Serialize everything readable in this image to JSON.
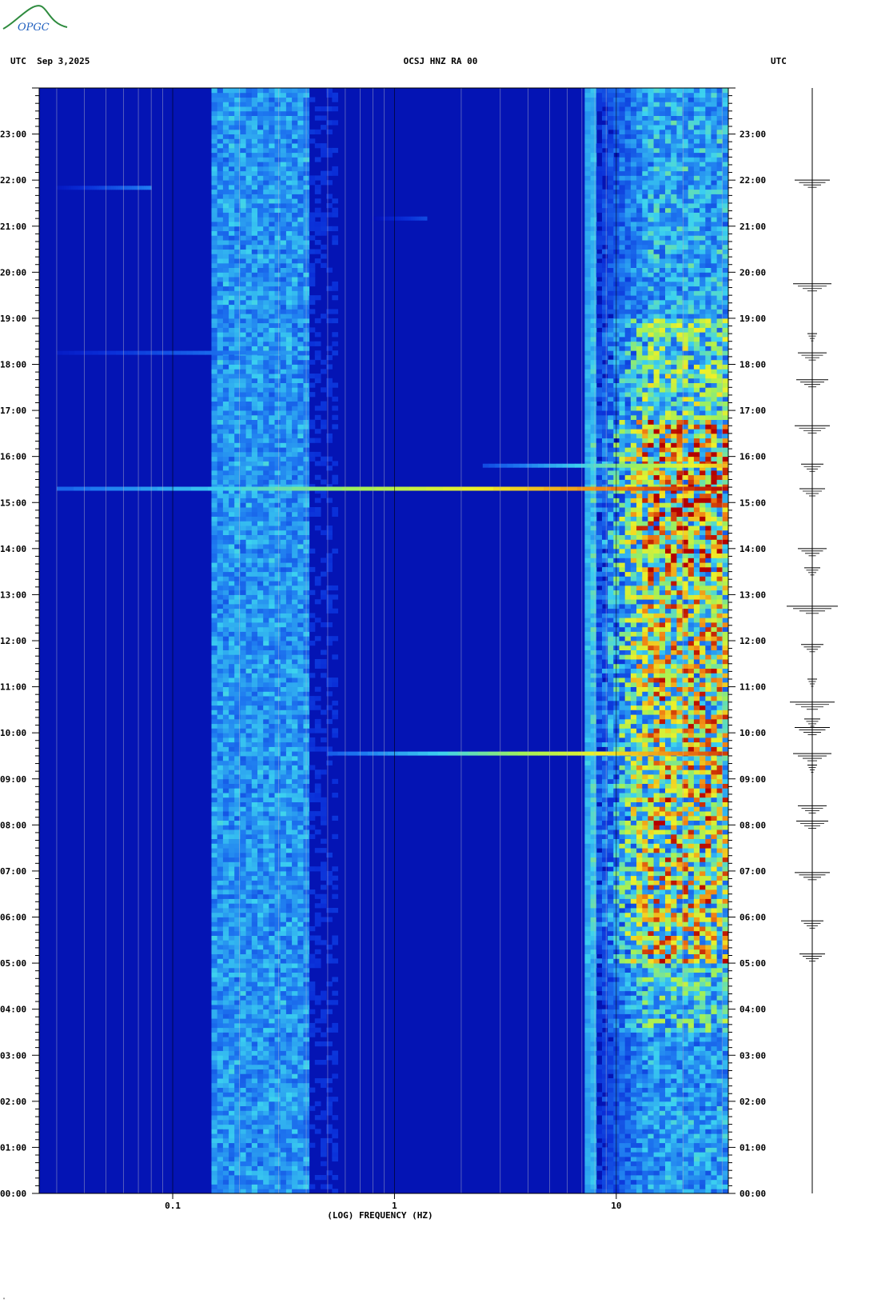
{
  "logo": {
    "text": "OPGC"
  },
  "header": {
    "left": "UTC  Sep 3,2025",
    "center": "OCSJ HNZ RA 00",
    "right": "UTC"
  },
  "chart_data": {
    "type": "heatmap",
    "title": "OCSJ HNZ RA 00",
    "date": "Sep 3,2025",
    "xlabel": "(LOG) FREQUENCY (HZ)",
    "xscale": "log",
    "xlim": [
      0.025,
      32
    ],
    "x_ticks": [
      {
        "value": 0.1,
        "label": "0.1"
      },
      {
        "value": 1,
        "label": "1"
      },
      {
        "value": 10,
        "label": "10"
      }
    ],
    "y_unit": "UTC",
    "ylim": [
      "00:00",
      "24:00"
    ],
    "y_ticks": [
      "00:00",
      "01:00",
      "02:00",
      "03:00",
      "04:00",
      "05:00",
      "06:00",
      "07:00",
      "08:00",
      "09:00",
      "10:00",
      "11:00",
      "12:00",
      "13:00",
      "14:00",
      "15:00",
      "16:00",
      "17:00",
      "18:00",
      "19:00",
      "20:00",
      "21:00",
      "22:00",
      "23:00"
    ],
    "colormap": [
      "#0000aa",
      "#0a2fd8",
      "#1e78f0",
      "#3cd2f0",
      "#a0f05a",
      "#f0f028",
      "#f08214",
      "#b40000"
    ],
    "background_color": "#0414b4",
    "microseism_band_hz": [
      0.15,
      0.4
    ],
    "high_freq_band_hz": [
      7,
      32
    ],
    "events": [
      {
        "time_utc": "15:18",
        "f_min_hz": 0.03,
        "f_max_hz": 32,
        "intensity": 1.0
      },
      {
        "time_utc": "09:33",
        "f_min_hz": 0.5,
        "f_max_hz": 32,
        "intensity": 0.95
      },
      {
        "time_utc": "15:48",
        "f_min_hz": 2.5,
        "f_max_hz": 32,
        "intensity": 0.8
      },
      {
        "time_utc": "18:15",
        "f_min_hz": 0.03,
        "f_max_hz": 0.35,
        "intensity": 0.35
      },
      {
        "time_utc": "21:50",
        "f_min_hz": 0.03,
        "f_max_hz": 0.08,
        "intensity": 0.3
      },
      {
        "time_utc": "21:10",
        "f_min_hz": 0.8,
        "f_max_hz": 1.4,
        "intensity": 0.2
      }
    ],
    "high_freq_activity": [
      {
        "start": "05:00",
        "end": "13:30",
        "intensity": 0.9
      },
      {
        "start": "13:30",
        "end": "16:45",
        "intensity": 1.0
      },
      {
        "start": "16:45",
        "end": "19:00",
        "intensity": 0.6
      },
      {
        "start": "03:30",
        "end": "05:00",
        "intensity": 0.45
      },
      {
        "start": "19:00",
        "end": "24:00",
        "intensity": 0.3
      },
      {
        "start": "00:00",
        "end": "03:30",
        "intensity": 0.25
      }
    ],
    "seismogram_events_utc": [
      "05:12",
      "05:55",
      "06:58",
      "08:05",
      "08:25",
      "09:18",
      "09:33",
      "10:07",
      "10:18",
      "10:40",
      "11:10",
      "11:55",
      "12:45",
      "13:35",
      "14:00",
      "15:18",
      "15:50",
      "16:40",
      "17:40",
      "18:15",
      "18:40",
      "19:45",
      "22:00"
    ]
  }
}
